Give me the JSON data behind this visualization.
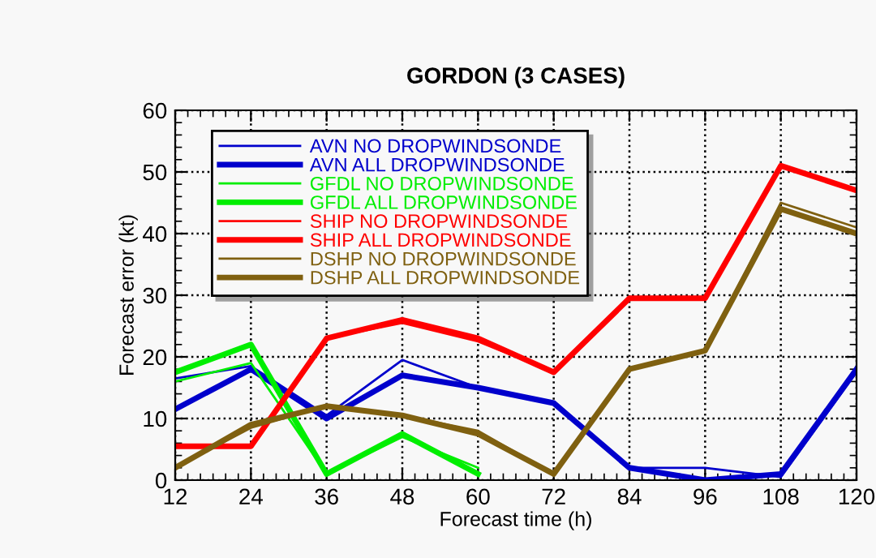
{
  "chart_data": {
    "type": "line",
    "title": "GORDON (3 CASES)",
    "xlabel": "Forecast time (h)",
    "ylabel": "Forecast error (kt)",
    "x": [
      12,
      24,
      36,
      48,
      60,
      72,
      84,
      96,
      108,
      120
    ],
    "xlim": [
      12,
      120
    ],
    "xticks": [
      12,
      24,
      36,
      48,
      60,
      72,
      84,
      96,
      108,
      120
    ],
    "ylim": [
      0,
      60
    ],
    "yticks": [
      0,
      10,
      20,
      30,
      40,
      50,
      60
    ],
    "grid": true,
    "legend": "top left",
    "marker": "none",
    "line_style": "solid",
    "series": [
      {
        "name": "AVN NO DROPWINDSONDE",
        "color": "#0000cc",
        "values": [
          16.5,
          18.5,
          10.5,
          19.5,
          15,
          12.5,
          2,
          2,
          0.5,
          17.5
        ]
      },
      {
        "name": "AVN ALL DROPWINDSONDE",
        "color": "#0000cc",
        "values": [
          11.5,
          18,
          10,
          17,
          15,
          12.5,
          2,
          0,
          1,
          18
        ]
      },
      {
        "name": "GFDL NO DROPWINDSONDE",
        "color": "#00ee00",
        "values": [
          16,
          19,
          1,
          7,
          2,
          null,
          null,
          null,
          null,
          null
        ]
      },
      {
        "name": "GFDL ALL DROPWINDSONDE",
        "color": "#00ee00",
        "values": [
          17.5,
          22,
          1,
          7.5,
          1,
          null,
          null,
          null,
          null,
          null
        ]
      },
      {
        "name": "SHIP NO DROPWINDSONDE",
        "color": "#ff0000",
        "values": [
          5.5,
          5.5,
          23,
          25.5,
          22.5,
          17.5,
          29.5,
          29.5,
          51,
          47
        ]
      },
      {
        "name": "SHIP ALL DROPWINDSONDE",
        "color": "#ff0000",
        "values": [
          5.5,
          5.5,
          23,
          26,
          23,
          17.5,
          29.5,
          29.5,
          51,
          47
        ]
      },
      {
        "name": "DSHP NO DROPWINDSONDE",
        "color": "#7f6010",
        "values": [
          2,
          8.5,
          12,
          10.5,
          8,
          1,
          18,
          21,
          45,
          41
        ]
      },
      {
        "name": "DSHP ALL DROPWINDSONDE",
        "color": "#7f6010",
        "values": [
          2,
          9,
          12,
          10.5,
          7.5,
          1,
          18,
          21,
          44,
          40
        ]
      }
    ]
  }
}
